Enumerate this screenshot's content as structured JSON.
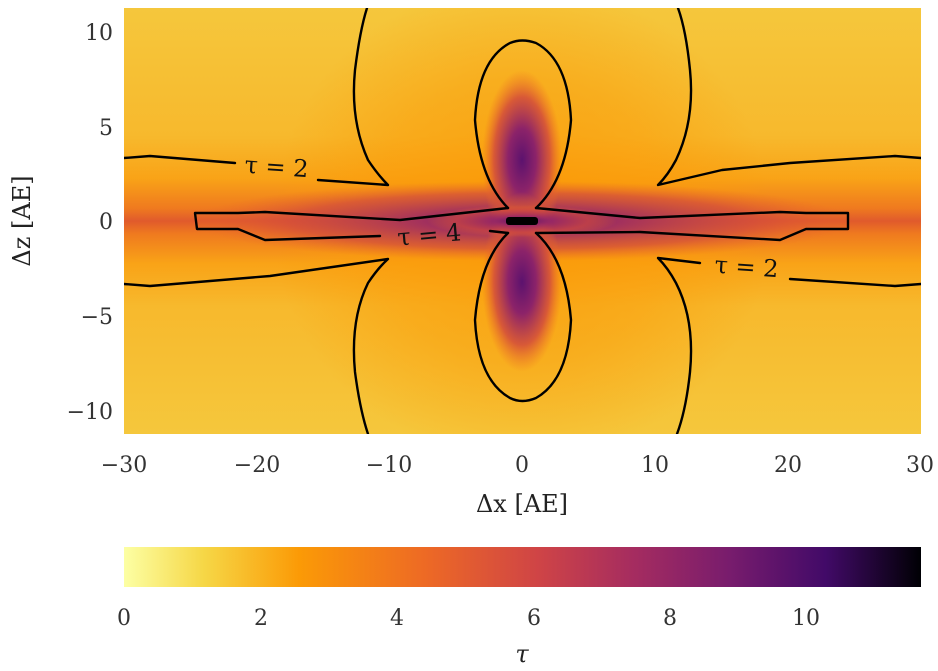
{
  "chart_data": {
    "type": "heatmap",
    "xlabel": "Δx [AE]",
    "ylabel": "Δz [AE]",
    "xlim": [
      -30,
      30
    ],
    "ylim": [
      -11.2,
      11.2
    ],
    "xticks": [
      -30,
      -20,
      -10,
      0,
      10,
      20,
      30
    ],
    "xtick_labels": [
      "−30",
      "−20",
      "−10",
      "0",
      "10",
      "20",
      "30"
    ],
    "yticks": [
      -10,
      -5,
      0,
      5,
      10
    ],
    "ytick_labels": [
      "−10",
      "−5",
      "0",
      "5",
      "10"
    ],
    "colorbar": {
      "label": "τ",
      "min": 0,
      "max": 11.7,
      "ticks": [
        0,
        2,
        4,
        6,
        8,
        10
      ],
      "tick_labels": [
        "0",
        "2",
        "4",
        "6",
        "8",
        "10"
      ],
      "colormap": "inferno_r"
    },
    "contour_labels": [
      {
        "text": "τ = 2",
        "x": -17.5,
        "z": 2.6
      },
      {
        "text": "τ = 4",
        "x": -6.5,
        "z": -0.8
      },
      {
        "text": "τ = 2",
        "x": 16.5,
        "z": -2.6
      }
    ],
    "source_region": {
      "x": 0,
      "z": 0
    }
  }
}
